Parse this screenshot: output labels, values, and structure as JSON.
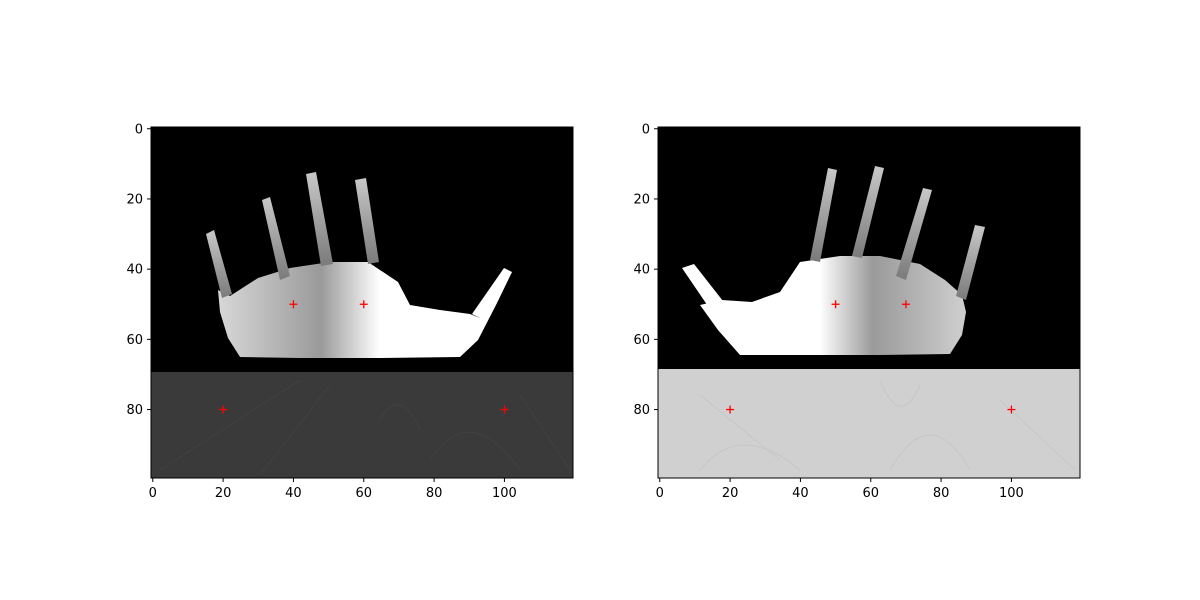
{
  "chart_data": [
    {
      "type": "image",
      "title": "",
      "xlabel": "",
      "ylabel": "",
      "xlim": [
        -0.5,
        119.5
      ],
      "ylim": [
        99.5,
        -0.5
      ],
      "y_axis_inverted": true,
      "xticks": [
        0,
        20,
        40,
        60,
        80,
        100
      ],
      "yticks": [
        0,
        20,
        40,
        60,
        80
      ],
      "colormap": "gray",
      "background_lower_region_start_y": 69.5,
      "background_lower_region_level": "dark-gray",
      "markers": {
        "style": "plus",
        "color": "#ff0000",
        "points": [
          {
            "x": 40,
            "y": 50
          },
          {
            "x": 60,
            "y": 50
          },
          {
            "x": 20,
            "y": 80
          },
          {
            "x": 100,
            "y": 80
          }
        ]
      }
    },
    {
      "type": "image",
      "title": "",
      "xlabel": "",
      "ylabel": "",
      "xlim": [
        -0.5,
        119.5
      ],
      "ylim": [
        99.5,
        -0.5
      ],
      "y_axis_inverted": true,
      "xticks": [
        0,
        20,
        40,
        60,
        80,
        100
      ],
      "yticks": [
        0,
        20,
        40,
        60,
        80
      ],
      "colormap": "gray",
      "background_lower_region_start_y": 68.5,
      "background_lower_region_level": "light-gray",
      "markers": {
        "style": "plus",
        "color": "#ff0000",
        "points": [
          {
            "x": 50,
            "y": 50
          },
          {
            "x": 70,
            "y": 50
          },
          {
            "x": 20,
            "y": 80
          },
          {
            "x": 100,
            "y": 80
          }
        ]
      }
    }
  ],
  "colors": {
    "marker": "#ff0000",
    "image_black": "#000000",
    "left_lower_region": "#3a3a3a",
    "right_lower_region": "#d0d0d0",
    "hand_bright": "#ffffff",
    "hand_mid": "#9a9a9a"
  }
}
